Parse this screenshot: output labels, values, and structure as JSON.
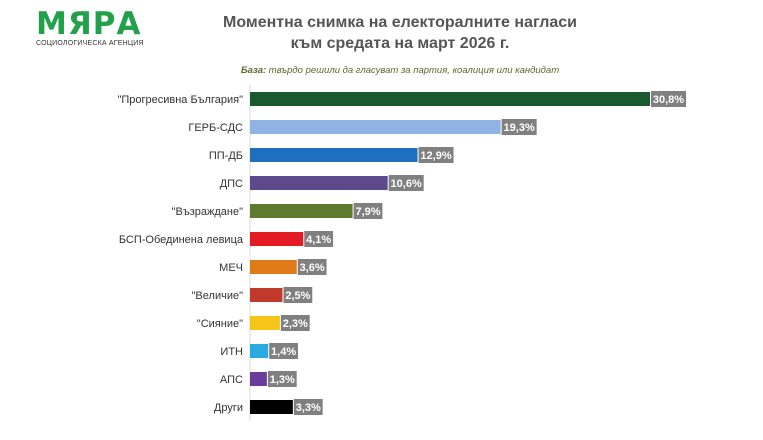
{
  "logo": {
    "name": "МЯРА",
    "tagline": "СОЦИОЛОГИЧЕСКА АГЕНЦИЯ"
  },
  "title_line1": "Моментна снимка на електоралните нагласи",
  "title_line2": "към средата на март 2026 г.",
  "base_label": "База:",
  "base_text": " твърдо решили да гласуват за партия, коалиция или кандидат",
  "chart_data": {
    "type": "bar",
    "orientation": "horizontal",
    "title": "Моментна снимка на електоралните нагласи към средата на март 2026 г.",
    "categories": [
      "\"Прогресивна България\"",
      "ГЕРБ-СДС",
      "ПП-ДБ",
      "ДПС",
      "\"Възраждане\"",
      "БСП-Обединена левица",
      "МЕЧ",
      "\"Величие\"",
      "\"Сияние\"",
      "ИТН",
      "АПС",
      "Други"
    ],
    "values": [
      30.8,
      19.3,
      12.9,
      10.6,
      7.9,
      4.1,
      3.6,
      2.5,
      2.3,
      1.4,
      1.3,
      3.3
    ],
    "value_labels": [
      "30,8%",
      "19,3%",
      "12,9%",
      "10,6%",
      "7,9%",
      "4,1%",
      "3,6%",
      "2,5%",
      "2,3%",
      "1,4%",
      "1,3%",
      "3,3%"
    ],
    "colors": [
      "#1a5a2e",
      "#8fb4e3",
      "#1f6fc0",
      "#5c4a8a",
      "#5e7a2e",
      "#e31b23",
      "#e07b1a",
      "#c0392b",
      "#f5c518",
      "#29abe2",
      "#6a3d9a",
      "#000000"
    ],
    "label_box_color": "#808080",
    "xlim": [
      0,
      30.8
    ],
    "grid": false,
    "legend": "none"
  }
}
